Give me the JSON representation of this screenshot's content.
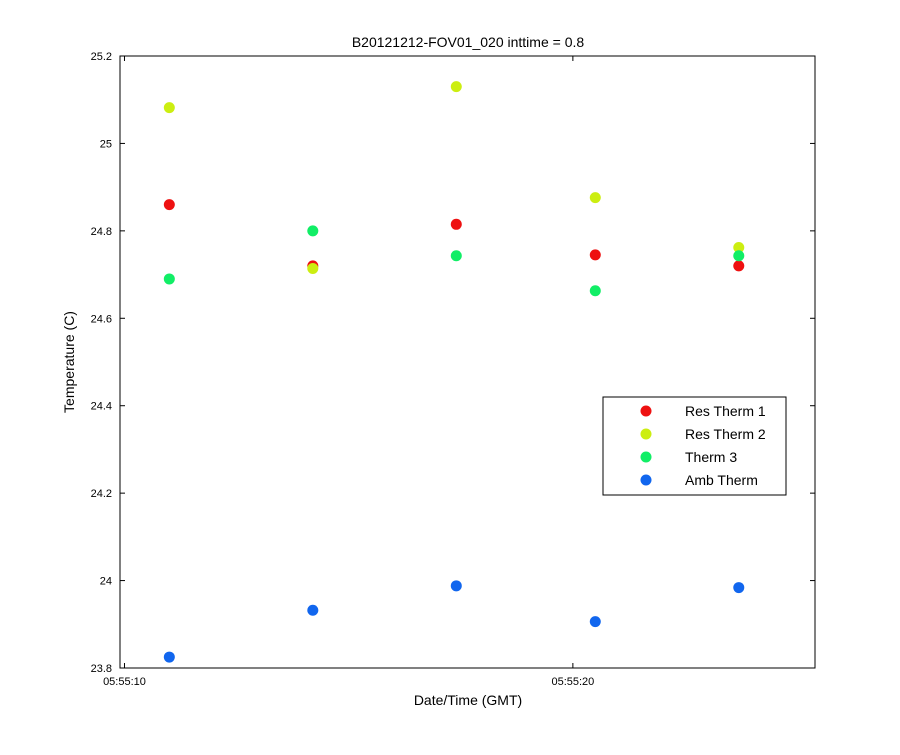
{
  "chart_data": {
    "type": "scatter",
    "title": "B20121212-FOV01_020 inttime = 0.8",
    "xlabel": "Date/Time (GMT)",
    "ylabel": "Temperature (C)",
    "x_type": "time",
    "x_values": [
      "05:55:11.0",
      "05:55:14.2",
      "05:55:17.4",
      "05:55:20.5",
      "05:55:23.7"
    ],
    "xlim": [
      "05:55:09.9",
      "05:55:25.4"
    ],
    "xticks": [
      {
        "label": "05:55:10",
        "value": "05:55:10.0"
      },
      {
        "label": "05:55:20",
        "value": "05:55:20.0"
      }
    ],
    "ylim": [
      23.8,
      25.2
    ],
    "yticks": [
      23.8,
      24,
      24.2,
      24.4,
      24.6,
      24.8,
      25,
      25.2
    ],
    "ytick_labels": [
      "23.8",
      "24",
      "24.2",
      "24.4",
      "24.6",
      "24.8",
      "25",
      "25.2"
    ],
    "grid": false,
    "legend_position": "right",
    "series": [
      {
        "name": "Res Therm 1",
        "color": "#ee1111",
        "values": [
          24.86,
          24.72,
          24.815,
          24.745,
          24.72
        ]
      },
      {
        "name": "Res Therm 2",
        "color": "#ccee11",
        "values": [
          25.082,
          24.714,
          25.13,
          24.876,
          24.762
        ]
      },
      {
        "name": "Therm 3",
        "color": "#11ee66",
        "values": [
          24.69,
          24.8,
          24.743,
          24.663,
          24.743
        ]
      },
      {
        "name": "Amb Therm",
        "color": "#1166ee",
        "values": [
          23.825,
          23.932,
          23.988,
          23.906,
          23.984
        ]
      }
    ]
  }
}
